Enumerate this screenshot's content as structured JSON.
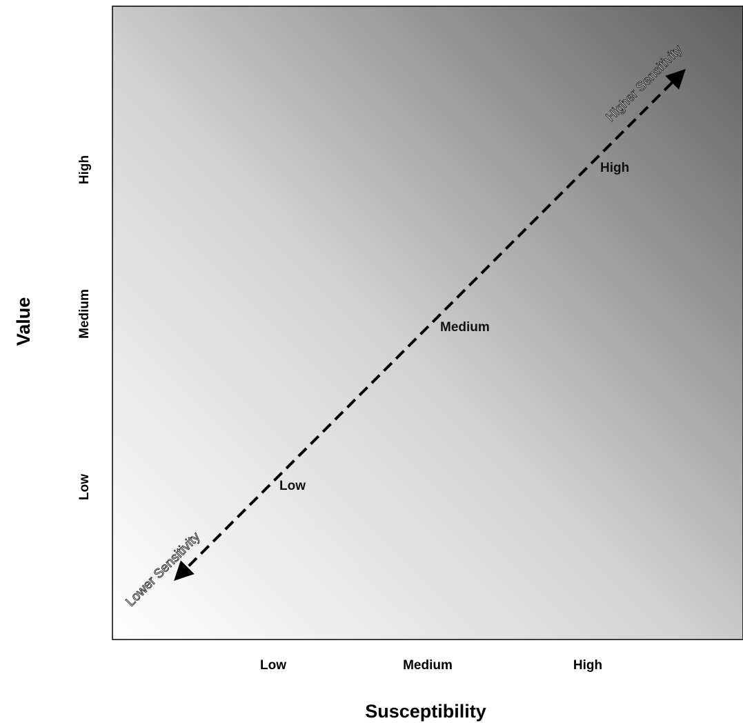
{
  "diagram": {
    "x_axis": {
      "title": "Susceptibility",
      "ticks": [
        "Low",
        "Medium",
        "High"
      ]
    },
    "y_axis": {
      "title": "Value",
      "ticks": [
        "Low",
        "Medium",
        "High"
      ]
    },
    "arrow": {
      "levels": [
        "Low",
        "Medium",
        "High"
      ],
      "upper_label": "Higher Sensitivity",
      "lower_label": "Lower Sensitivity"
    },
    "colors": {
      "gradient_light": "#ffffff",
      "gradient_dark": "#5e5e5e",
      "arrow": "#000000",
      "frame": "#000000"
    }
  }
}
